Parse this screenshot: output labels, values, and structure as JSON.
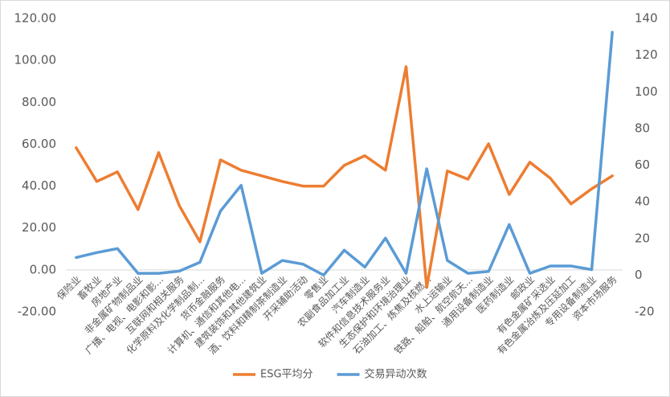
{
  "chart_data": {
    "type": "line",
    "categories": [
      "保险业",
      "畜牧业",
      "房地产业",
      "非金属矿物制品业",
      "广播、电视、电影和影...",
      "互联网和相关服务",
      "化学原料及化学制品制...",
      "货币金融服务",
      "计算机、通信和其他电...",
      "建筑装饰和其他建筑业",
      "酒、饮料和精制茶制造业",
      "开采辅助活动",
      "零售业",
      "农副食品加工业",
      "汽车制造业",
      "软件和信息技术服务业",
      "生态保护和环境治理业",
      "石油加工、炼焦及核燃...",
      "水上运输业",
      "铁路、船舶、航空航天...",
      "通用设备制造业",
      "医药制造业",
      "邮政业",
      "有色金属矿采选业",
      "有色金属冶炼及压延加工",
      "专用设备制造业",
      "资本市场服务"
    ],
    "series": [
      {
        "name": "ESG平均分",
        "color": "#ed7d31",
        "values": [
          58.3,
          42.2,
          46.8,
          28.8,
          56,
          30.7,
          13.4,
          52.5,
          47.6,
          44.9,
          42.2,
          40,
          40,
          49.9,
          54.5,
          47.6,
          97,
          -8.4,
          47.2,
          43.3,
          60.2,
          36,
          51.4,
          43.7,
          31.5,
          38.7,
          44.9
        ]
      },
      {
        "name": "交易异动次数",
        "color": "#5b9bd5",
        "axis": "y2",
        "values": [
          9.6,
          12.3,
          14.5,
          1,
          1,
          2.2,
          7,
          35,
          49,
          1,
          8,
          6,
          0,
          13.6,
          4.4,
          20.2,
          1,
          58,
          8,
          1,
          2,
          27.6,
          1,
          5,
          5,
          3,
          132.5
        ]
      }
    ],
    "ylim": [
      -20,
      120
    ],
    "yticks": [
      {
        "value": -20,
        "label": "-20.00"
      },
      {
        "value": 0,
        "label": "0.00"
      },
      {
        "value": 20,
        "label": "20.00"
      },
      {
        "value": 40,
        "label": "40.00"
      },
      {
        "value": 60,
        "label": "60.00"
      },
      {
        "value": 80,
        "label": "80.00"
      },
      {
        "value": 100,
        "label": "100.00"
      },
      {
        "value": 120,
        "label": "120.00"
      }
    ],
    "y2lim": [
      -20,
      140
    ],
    "y2ticks": [
      -20,
      0,
      20,
      40,
      60,
      80,
      100,
      120,
      140
    ],
    "legend": "bottom"
  }
}
